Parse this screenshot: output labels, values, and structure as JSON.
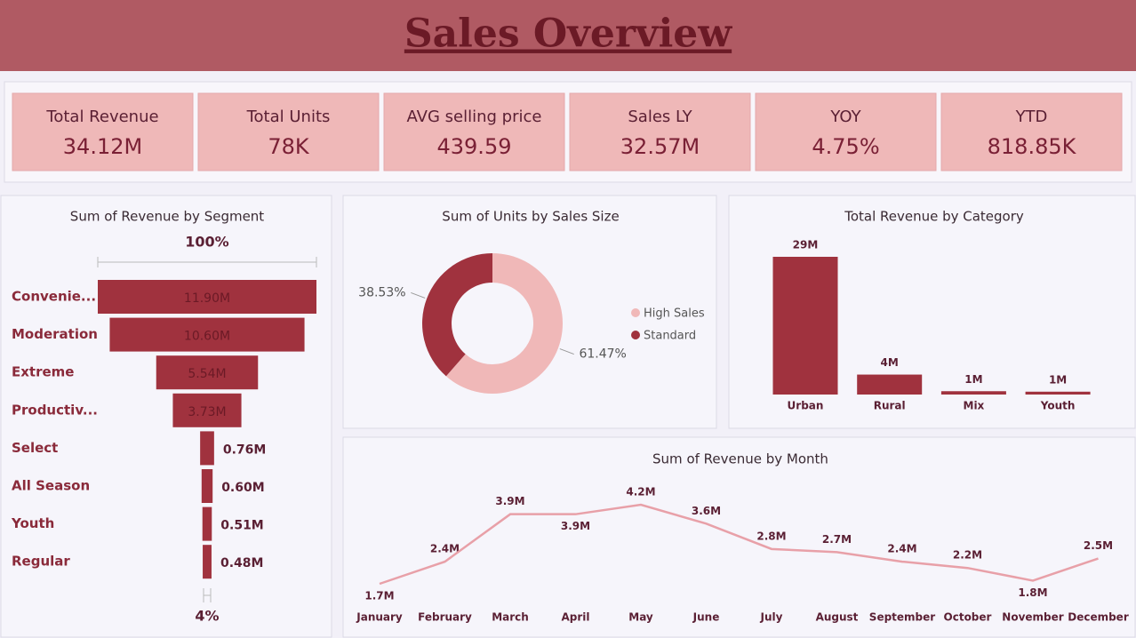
{
  "header": {
    "title": "Sales Overview"
  },
  "kpis": [
    {
      "label": "Total Revenue",
      "value": "34.12M"
    },
    {
      "label": "Total Units",
      "value": "78K"
    },
    {
      "label": "AVG selling price",
      "value": "439.59"
    },
    {
      "label": "Sales LY",
      "value": "32.57M"
    },
    {
      "label": "YOY",
      "value": "4.75%"
    },
    {
      "label": "YTD",
      "value": "818.85K"
    }
  ],
  "chart_data": [
    {
      "type": "funnel",
      "title": "Sum of Revenue by Segment",
      "top_label": "100%",
      "bottom_label": "4%",
      "categories": [
        "Convenie...",
        "Moderation",
        "Extreme",
        "Productiv...",
        "Select",
        "All Season",
        "Youth",
        "Regular"
      ],
      "values": [
        11.9,
        10.6,
        5.54,
        3.73,
        0.76,
        0.6,
        0.51,
        0.48
      ],
      "value_labels": [
        "11.90M",
        "10.60M",
        "5.54M",
        "3.73M",
        "0.76M",
        "0.60M",
        "0.51M",
        "0.48M"
      ],
      "color": "#a0323e"
    },
    {
      "type": "pie",
      "title": "Sum of Units by Sales Size",
      "categories": [
        "High Sales",
        "Standard"
      ],
      "values": [
        61.47,
        38.53
      ],
      "value_labels": [
        "61.47%",
        "38.53%"
      ],
      "colors": [
        "#f0b8b8",
        "#a0323e"
      ]
    },
    {
      "type": "bar",
      "title": "Total Revenue by Category",
      "categories": [
        "Urban",
        "Rural",
        "Mix",
        "Youth"
      ],
      "values": [
        29,
        4.2,
        0.7,
        0.6
      ],
      "value_labels": [
        "29M",
        "4M",
        "1M",
        "1M"
      ],
      "color": "#a0323e"
    },
    {
      "type": "line",
      "title": "Sum of Revenue by Month",
      "categories": [
        "January",
        "February",
        "March",
        "April",
        "May",
        "June",
        "July",
        "August",
        "September",
        "October",
        "November",
        "December"
      ],
      "values": [
        1.7,
        2.4,
        3.9,
        3.9,
        4.2,
        3.6,
        2.8,
        2.7,
        2.4,
        2.2,
        1.8,
        2.5
      ],
      "value_labels": [
        "1.7M",
        "2.4M",
        "3.9M",
        "3.9M",
        "4.2M",
        "3.6M",
        "2.8M",
        "2.7M",
        "2.4M",
        "2.2M",
        "1.8M",
        "2.5M"
      ],
      "color": "#e8a0a8"
    }
  ]
}
